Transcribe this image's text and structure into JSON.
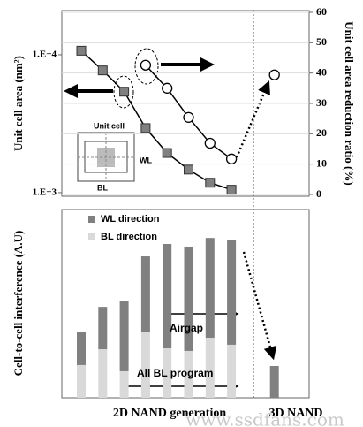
{
  "chart_data": [
    {
      "type": "line",
      "y_label": "Unit cell area  (nm²)",
      "y2_label": "Unit cell area reduction ratio (%)",
      "categories": [
        null,
        null,
        null,
        null,
        null,
        null,
        null,
        null,
        null,
        null
      ],
      "y_scale": "log",
      "ylim": [
        970,
        20300
      ],
      "yticks": [
        {
          "value": 1000,
          "label": "1.E+3"
        },
        {
          "value": 10000,
          "label": "1.E+4"
        }
      ],
      "y2lim": [
        0,
        60
      ],
      "y2ticks": [
        0,
        10,
        20,
        30,
        40,
        50,
        60
      ],
      "grid": true,
      "series": [
        {
          "color": "#808080",
          "marker": "square",
          "line": true,
          "axis": "y",
          "values": [
            10700,
            7700,
            5400,
            2940,
            1940,
            1470,
            1180,
            1050,
            null,
            null
          ]
        },
        {
          "color": "#ffffff",
          "marker": "circle",
          "line": true,
          "axis": "y2",
          "values": [
            null,
            null,
            null,
            42.6,
            35,
            25.4,
            16.9,
            11.7,
            null,
            null
          ]
        },
        {
          "color": "#ffffff",
          "marker": "circle",
          "line": false,
          "axis": "y2",
          "values": [
            null,
            null,
            null,
            null,
            null,
            null,
            null,
            null,
            null,
            39.4
          ]
        }
      ],
      "annotations": [
        "Unit cell",
        "WL",
        "BL"
      ]
    },
    {
      "type": "bar",
      "stacked": true,
      "y_label": "Cell-to-cell interference (A.U)",
      "x_groups": [
        "2D NAND generation",
        "3D NAND"
      ],
      "categories": [
        null,
        null,
        null,
        null,
        null,
        null,
        null,
        null,
        null,
        null
      ],
      "ylim": [
        0,
        100
      ],
      "legend": "upper left",
      "series": [
        {
          "name": "WL direction",
          "color": "#808080",
          "values": [
            17.4,
            22.5,
            37.1,
            39.9,
            55.4,
            55.4,
            53,
            55.4,
            null,
            16.9
          ]
        },
        {
          "name": "BL direction",
          "color": "#d9d9d9",
          "values": [
            17.4,
            25.8,
            14.1,
            35.2,
            26.3,
            24.9,
            31.9,
            28.2,
            null,
            null
          ]
        }
      ],
      "annotations": [
        "Airgap",
        "All BL program"
      ]
    }
  ],
  "watermark": "www.ssdfans.com"
}
